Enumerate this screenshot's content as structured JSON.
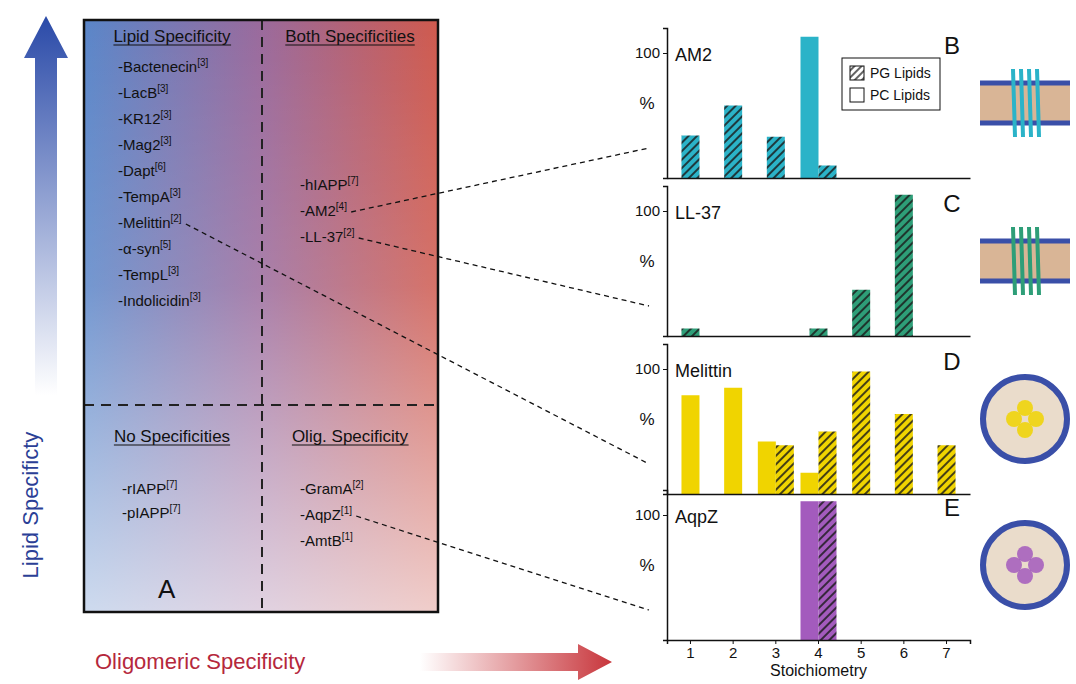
{
  "diagram": {
    "label": "A",
    "y_axis_label": "Lipid Specificty",
    "x_axis_label": "Oligomeric Specificity",
    "quadrants": [
      {
        "title": "Lipid Specificity",
        "items": [
          {
            "name": "-Bactenecin",
            "ref": "[3]"
          },
          {
            "name": "-LacB",
            "ref": "[3]"
          },
          {
            "name": "-KR12",
            "ref": "[3]"
          },
          {
            "name": "-Mag2",
            "ref": "[3]"
          },
          {
            "name": "-Dapt",
            "ref": "[6]"
          },
          {
            "name": "-TempA",
            "ref": "[3]"
          },
          {
            "name": "-Melittin",
            "ref": "[2]"
          },
          {
            "name": "-α-syn",
            "ref": "[5]"
          },
          {
            "name": "-TempL",
            "ref": "[3]"
          },
          {
            "name": "-Indolicidin",
            "ref": "[3]"
          }
        ]
      },
      {
        "title": "Both Specificities",
        "items": [
          {
            "name": "-hIAPP",
            "ref": "[7]"
          },
          {
            "name": "-AM2",
            "ref": "[4]"
          },
          {
            "name": "-LL-37",
            "ref": "[2]"
          }
        ]
      },
      {
        "title": "No Specificities",
        "items": [
          {
            "name": "-rIAPP",
            "ref": "[7]"
          },
          {
            "name": "-pIAPP",
            "ref": "[7]"
          }
        ]
      },
      {
        "title": "Olig. Specificity",
        "items": [
          {
            "name": "-GramA",
            "ref": "[2]"
          },
          {
            "name": "-AqpZ",
            "ref": "[1]"
          },
          {
            "name": "-AmtB",
            "ref": "[1]"
          }
        ]
      }
    ]
  },
  "chart_data": [
    {
      "type": "bar",
      "title": "AM2",
      "panel_label": "B",
      "y_label": "%",
      "categories": [
        1,
        2,
        3,
        4,
        5,
        6,
        7
      ],
      "ylim": [
        0,
        120
      ],
      "yticks": [
        100
      ],
      "tick_labels": "y",
      "legend": "upper right",
      "series": [
        {
          "name": "PG Lipids",
          "color": "#2bb3c8",
          "marker": "hatched",
          "values": [
            34,
            58,
            33,
            10,
            null,
            null,
            null
          ]
        },
        {
          "name": "PC Lipids",
          "color": "#2bb3c8",
          "marker": "solid",
          "values": [
            null,
            null,
            null,
            113,
            null,
            null,
            null
          ]
        }
      ]
    },
    {
      "type": "bar",
      "title": "LL-37",
      "panel_label": "C",
      "y_label": "%",
      "categories": [
        1,
        2,
        3,
        4,
        5,
        6,
        7
      ],
      "ylim": [
        0,
        120
      ],
      "yticks": [
        100
      ],
      "tick_labels": "y",
      "series": [
        {
          "name": "PG Lipids",
          "color": "#2e9e78",
          "marker": "hatched",
          "values": [
            6,
            null,
            null,
            6,
            37,
            113,
            null
          ]
        },
        {
          "name": "PC Lipids",
          "color": "#2e9e78",
          "marker": "solid",
          "values": [
            null,
            null,
            null,
            null,
            null,
            null,
            null
          ]
        }
      ]
    },
    {
      "type": "bar",
      "title": "Melittin",
      "panel_label": "D",
      "y_label": "%",
      "categories": [
        1,
        2,
        3,
        4,
        5,
        6,
        7
      ],
      "ylim": [
        0,
        120
      ],
      "yticks": [
        100
      ],
      "tick_labels": "y",
      "series": [
        {
          "name": "PG Lipids",
          "color": "#f0d400",
          "marker": "hatched",
          "values": [
            null,
            null,
            39,
            50,
            98,
            64,
            39
          ]
        },
        {
          "name": "PC Lipids",
          "color": "#f0d400",
          "marker": "solid",
          "values": [
            79,
            85,
            42,
            17,
            null,
            null,
            null
          ]
        }
      ]
    },
    {
      "type": "bar",
      "title": "AqpZ",
      "panel_label": "E",
      "y_label": "%",
      "x_label": "Stoichiometry",
      "categories": [
        1,
        2,
        3,
        4,
        5,
        6,
        7
      ],
      "ylim": [
        0,
        120
      ],
      "yticks": [
        100
      ],
      "tick_labels": true,
      "series": [
        {
          "name": "PG Lipids",
          "color": "#a35bbd",
          "marker": "hatched",
          "values": [
            null,
            null,
            null,
            111,
            null,
            null,
            null
          ]
        },
        {
          "name": "PC Lipids",
          "color": "#a35bbd",
          "marker": "solid",
          "values": [
            null,
            null,
            null,
            111,
            null,
            null,
            null
          ]
        }
      ]
    }
  ]
}
